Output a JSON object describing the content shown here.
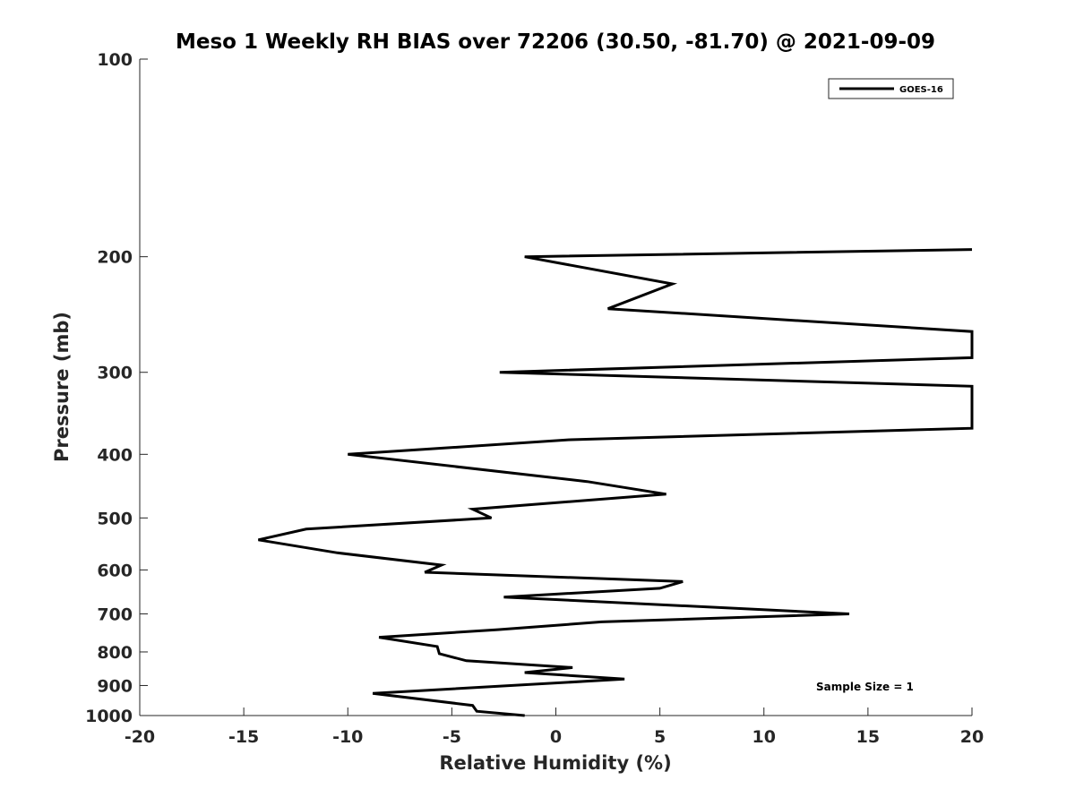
{
  "chart_data": {
    "type": "line",
    "title": "Meso 1 Weekly RH BIAS over 72206 (30.50, -81.70) @ 2021-09-09",
    "xlabel": "Relative Humidity (%)",
    "ylabel": "Pressure (mb)",
    "xlim": [
      -20,
      20
    ],
    "ylim": [
      100,
      1000
    ],
    "yscale": "log",
    "y_reversed": true,
    "grid": false,
    "xticks": [
      -20,
      -15,
      -10,
      -5,
      0,
      5,
      10,
      15,
      20
    ],
    "xtick_labels": [
      "-20",
      "-15",
      "-10",
      "-5",
      "0",
      "5",
      "10",
      "15",
      "20"
    ],
    "yticks": [
      100,
      200,
      300,
      400,
      500,
      600,
      700,
      800,
      900,
      1000
    ],
    "ytick_labels": [
      "100",
      "200",
      "300",
      "400",
      "500",
      "600",
      "700",
      "800",
      "900",
      "1000"
    ],
    "legend": {
      "placement": "top-right"
    },
    "annotation": "Sample Size = 1",
    "line_color": "#000000",
    "series": [
      {
        "name": "GOES-16",
        "points": [
          [
            20,
            195
          ],
          [
            -1.5,
            200
          ],
          [
            5.6,
            220
          ],
          [
            2.5,
            240
          ],
          [
            20,
            260
          ],
          [
            20,
            285
          ],
          [
            -2.7,
            300
          ],
          [
            20,
            315
          ],
          [
            20,
            365
          ],
          [
            0.7,
            380
          ],
          [
            -10.0,
            400
          ],
          [
            1.5,
            440
          ],
          [
            5.3,
            460
          ],
          [
            -4.0,
            485
          ],
          [
            -3.1,
            500
          ],
          [
            -12.0,
            520
          ],
          [
            -14.3,
            540
          ],
          [
            -10.5,
            565
          ],
          [
            -5.5,
            590
          ],
          [
            -6.3,
            605
          ],
          [
            6.1,
            625
          ],
          [
            5.0,
            640
          ],
          [
            -2.5,
            660
          ],
          [
            14.1,
            700
          ],
          [
            2.2,
            720
          ],
          [
            -2.8,
            740
          ],
          [
            -8.5,
            760
          ],
          [
            -5.7,
            785
          ],
          [
            -5.6,
            805
          ],
          [
            -4.3,
            825
          ],
          [
            0.8,
            845
          ],
          [
            -1.5,
            860
          ],
          [
            3.3,
            880
          ],
          [
            -8.8,
            925
          ],
          [
            -4.0,
            965
          ],
          [
            -3.8,
            985
          ],
          [
            -1.5,
            1000
          ]
        ]
      }
    ]
  }
}
